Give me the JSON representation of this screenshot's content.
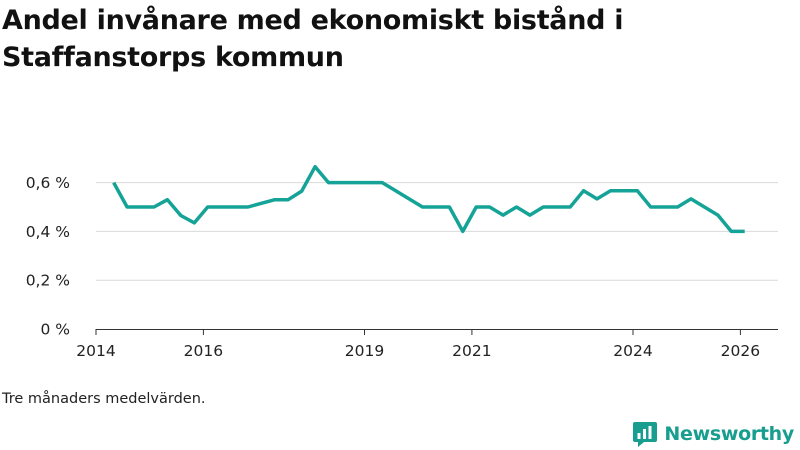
{
  "chart_data": {
    "type": "line",
    "title": "Andel invånare med ekonomiskt bistånd i Staffanstorps kommun",
    "note": "Tre månaders medelvärden.",
    "xlabel": "",
    "ylabel": "",
    "ylim": [
      0,
      0.75
    ],
    "xlim": [
      2014.0,
      2026.7
    ],
    "yticks": [
      0,
      0.2,
      0.4,
      0.6
    ],
    "ytick_labels": [
      "0 %",
      "0,2 %",
      "0,4 %",
      "0,6 %"
    ],
    "xticks": [
      2014,
      2016,
      2019,
      2021,
      2024,
      2026
    ],
    "xtick_labels": [
      "2014",
      "2016",
      "2019",
      "2021",
      "2024",
      "2026"
    ],
    "grid": true,
    "series": [
      {
        "name": "Andel invånare med ekonomiskt bistånd",
        "color": "#15a398",
        "x": [
          2014.33,
          2014.58,
          2014.83,
          2015.08,
          2015.33,
          2015.58,
          2015.83,
          2016.08,
          2016.33,
          2016.58,
          2016.83,
          2017.08,
          2017.33,
          2017.58,
          2017.83,
          2018.08,
          2018.33,
          2018.58,
          2018.83,
          2019.08,
          2019.33,
          2019.58,
          2019.83,
          2020.08,
          2020.33,
          2020.58,
          2020.83,
          2021.08,
          2021.33,
          2021.58,
          2021.83,
          2022.08,
          2022.33,
          2022.58,
          2022.83,
          2023.08,
          2023.33,
          2023.58,
          2023.83,
          2024.08,
          2024.33,
          2024.58,
          2024.83,
          2025.08,
          2025.33,
          2025.58,
          2025.83,
          2026.08
        ],
        "values": [
          0.6,
          0.5,
          0.5,
          0.5,
          0.53,
          0.465,
          0.435,
          0.5,
          0.5,
          0.5,
          0.5,
          0.515,
          0.53,
          0.53,
          0.565,
          0.665,
          0.6,
          0.6,
          0.6,
          0.6,
          0.6,
          0.567,
          0.533,
          0.5,
          0.5,
          0.5,
          0.4,
          0.5,
          0.5,
          0.467,
          0.5,
          0.467,
          0.5,
          0.5,
          0.5,
          0.567,
          0.533,
          0.567,
          0.567,
          0.567,
          0.5,
          0.5,
          0.5,
          0.533,
          0.5,
          0.467,
          0.4,
          0.4
        ]
      }
    ]
  },
  "brand": {
    "name": "Newsworthy",
    "icon": "newsworthy-logo-icon",
    "color": "#179e8f"
  }
}
